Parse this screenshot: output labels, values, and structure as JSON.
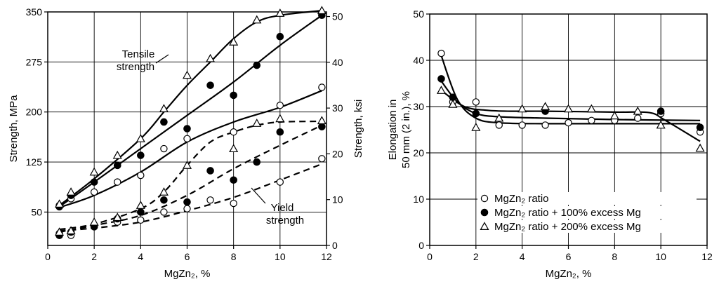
{
  "chart_data": [
    {
      "type": "scatter",
      "title": "",
      "xlabel": "MgZn₂, %",
      "ylabel": "Strength, MPa",
      "y2label": "Strength, ksi",
      "xlim": [
        0,
        12
      ],
      "ylim": [
        0,
        350
      ],
      "y2lim": [
        0,
        51
      ],
      "x_ticks": [
        0,
        2,
        4,
        6,
        8,
        10,
        12
      ],
      "y_ticks": [
        50,
        125,
        200,
        275,
        350
      ],
      "y2_ticks": [
        0,
        10,
        20,
        30,
        40,
        50
      ],
      "grid": true,
      "annotations": [
        {
          "id": "tensile",
          "lines": [
            "Tensile",
            "strength"
          ]
        },
        {
          "id": "yield",
          "lines": [
            "Yield",
            "strength"
          ]
        }
      ],
      "series": [
        {
          "marker": "circle-open",
          "kind": "tensile",
          "style": "solid",
          "x": [
            0.5,
            1,
            2,
            3,
            4,
            5,
            6,
            8,
            10,
            11.8
          ],
          "y": [
            60,
            70,
            80,
            95,
            105,
            145,
            160,
            170,
            210,
            237
          ]
        },
        {
          "marker": "circle-filled",
          "kind": "tensile",
          "style": "solid",
          "x": [
            0.5,
            1,
            2,
            3,
            4,
            5,
            6,
            7,
            8,
            9,
            10,
            11.8
          ],
          "y": [
            58,
            75,
            95,
            120,
            135,
            185,
            175,
            240,
            225,
            270,
            313,
            345
          ]
        },
        {
          "marker": "triangle-open",
          "kind": "tensile",
          "style": "solid",
          "x": [
            0.5,
            1,
            2,
            3,
            4,
            5,
            6,
            7,
            8,
            9,
            10,
            11.8
          ],
          "y": [
            62,
            80,
            110,
            135,
            160,
            205,
            255,
            280,
            305,
            338,
            348,
            352
          ]
        },
        {
          "marker": "circle-open",
          "kind": "yield",
          "style": "dashed",
          "x": [
            0.5,
            1,
            2,
            3,
            4,
            5,
            6,
            7,
            8,
            10,
            11.8
          ],
          "y": [
            18,
            15,
            28,
            35,
            38,
            50,
            55,
            68,
            63,
            95,
            130
          ]
        },
        {
          "marker": "circle-filled",
          "kind": "yield",
          "style": "dashed",
          "x": [
            0.5,
            1,
            2,
            3,
            4,
            5,
            6,
            7,
            8,
            9,
            10,
            11.8
          ],
          "y": [
            15,
            20,
            28,
            40,
            50,
            68,
            65,
            112,
            98,
            125,
            170,
            178
          ]
        },
        {
          "marker": "triangle-open",
          "kind": "yield",
          "style": "dashed",
          "x": [
            0.5,
            1,
            2,
            3,
            4,
            5,
            6,
            8,
            9,
            10,
            11.8
          ],
          "y": [
            20,
            22,
            35,
            42,
            60,
            80,
            120,
            145,
            183,
            190,
            187
          ]
        }
      ],
      "curves": [
        {
          "style": "solid",
          "x": [
            0.5,
            2,
            4,
            6,
            8,
            10,
            11.8
          ],
          "y": [
            57,
            75,
            110,
            155,
            185,
            207,
            232
          ]
        },
        {
          "style": "solid",
          "x": [
            0.5,
            2,
            4,
            6,
            8,
            10,
            11.8
          ],
          "y": [
            58,
            95,
            145,
            195,
            245,
            300,
            345
          ]
        },
        {
          "style": "solid",
          "x": [
            0.5,
            2,
            4,
            5,
            6,
            7,
            8,
            9,
            10,
            11.8
          ],
          "y": [
            60,
            100,
            160,
            200,
            240,
            275,
            310,
            335,
            345,
            352
          ]
        },
        {
          "style": "dashed",
          "x": [
            0.5,
            2,
            4,
            6,
            8,
            10,
            11.8
          ],
          "y": [
            22,
            26,
            35,
            52,
            72,
            98,
            122
          ]
        },
        {
          "style": "dashed",
          "x": [
            0.5,
            2,
            4,
            6,
            8,
            10,
            11.8
          ],
          "y": [
            20,
            30,
            45,
            75,
            115,
            150,
            180
          ]
        },
        {
          "style": "dashed",
          "x": [
            0.5,
            2,
            4,
            5,
            6,
            7,
            8,
            9,
            10,
            11.8
          ],
          "y": [
            24,
            32,
            55,
            80,
            120,
            155,
            170,
            180,
            185,
            186
          ]
        }
      ]
    },
    {
      "type": "scatter",
      "title": "",
      "xlabel": "MgZn₂, %",
      "ylabel": "Elongation in 50 mm (2 in.), %",
      "ylabel_lines": [
        "Elongation in",
        "50 mm (2 in.), %"
      ],
      "xlim": [
        0,
        12
      ],
      "ylim": [
        0,
        50
      ],
      "x_ticks": [
        0,
        2,
        4,
        6,
        8,
        10,
        12
      ],
      "y_ticks": [
        0,
        10,
        20,
        30,
        40,
        50
      ],
      "grid": true,
      "legend": {
        "placement": "bottom-left",
        "entries": [
          {
            "marker": "circle-open",
            "label": "MgZn₂ ratio"
          },
          {
            "marker": "circle-filled",
            "label": "MgZn₂ ratio + 100% excess Mg"
          },
          {
            "marker": "triangle-open",
            "label": "MgZn₂ ratio + 200% excess Mg"
          }
        ]
      },
      "series": [
        {
          "name": "MgZn₂ ratio",
          "marker": "circle-open",
          "x": [
            0.5,
            1,
            2,
            3,
            4,
            5,
            6,
            7,
            8,
            9,
            10,
            11.7
          ],
          "y": [
            41.5,
            31,
            31,
            26,
            26,
            26,
            26.5,
            27,
            27,
            27.5,
            28.5,
            24.5
          ]
        },
        {
          "name": "MgZn₂ ratio + 100% excess Mg",
          "marker": "circle-filled",
          "x": [
            0.5,
            1,
            2,
            5,
            10,
            11.7
          ],
          "y": [
            36,
            32,
            28.5,
            29,
            29,
            25.5
          ]
        },
        {
          "name": "MgZn₂ ratio + 200% excess Mg",
          "marker": "triangle-open",
          "x": [
            0.5,
            1,
            2,
            3,
            4,
            5,
            6,
            7,
            8,
            9,
            10,
            11.7
          ],
          "y": [
            33.5,
            30.5,
            25.5,
            27.5,
            29.5,
            30,
            29.5,
            29.5,
            28,
            29,
            26,
            21
          ]
        }
      ],
      "curves": [
        {
          "style": "solid",
          "x": [
            0.5,
            1.2,
            2,
            3,
            5,
            8,
            11.7
          ],
          "y": [
            41,
            31.5,
            27.5,
            26.5,
            26.3,
            26.3,
            26.3
          ]
        },
        {
          "style": "solid",
          "x": [
            0.5,
            1.2,
            2,
            3,
            5,
            8,
            11.7
          ],
          "y": [
            35.5,
            31,
            28.5,
            27.8,
            27.5,
            27.2,
            27
          ]
        },
        {
          "style": "solid",
          "x": [
            0.5,
            1.5,
            2.5,
            3.5,
            5,
            8,
            9.5,
            10.2,
            11.7
          ],
          "y": [
            33.5,
            30,
            29.2,
            29,
            29,
            28.8,
            28.7,
            27,
            22.5
          ]
        }
      ]
    }
  ]
}
